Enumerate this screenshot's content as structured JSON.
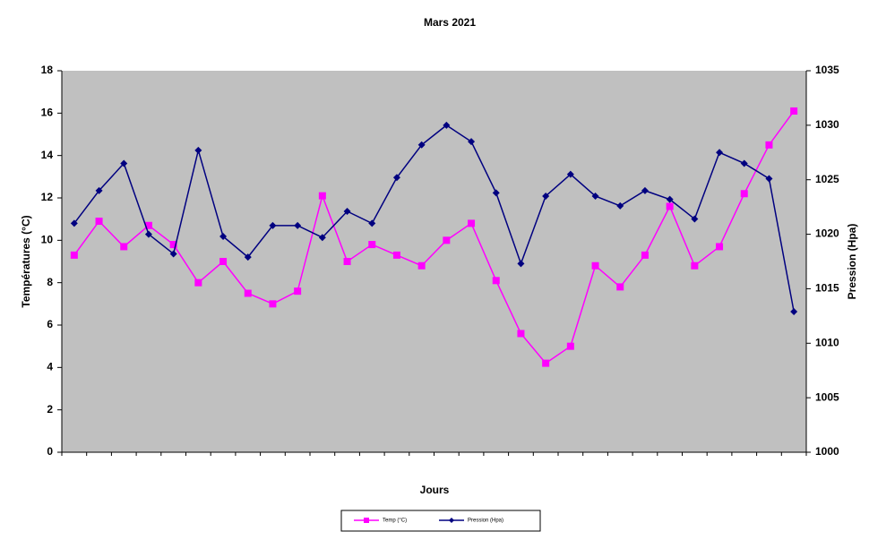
{
  "chart_data": {
    "type": "line",
    "title": "Mars 2021",
    "x_label": "Jours",
    "y_label": "Températures (°C)",
    "y2_label": "Pression (Hpa)",
    "categories": [
      null,
      null,
      null,
      null,
      null,
      null,
      null,
      null,
      null,
      null,
      null,
      null,
      null,
      null,
      null,
      null,
      null,
      null,
      null,
      null,
      null,
      null,
      null,
      null,
      null,
      null,
      null,
      null,
      null,
      null
    ],
    "series": [
      {
        "name": "Temp (°C)",
        "color": "#ff00ff",
        "marker": "square",
        "values": [
          9.3,
          10.9,
          9.7,
          10.7,
          9.8,
          8.0,
          9.0,
          7.5,
          7.0,
          7.6,
          12.1,
          9.0,
          9.8,
          9.3,
          8.8,
          10.0,
          10.8,
          8.1,
          5.6,
          4.2,
          5.0,
          8.8,
          7.8,
          9.3,
          11.6,
          8.8,
          9.7,
          12.2,
          14.5,
          16.1
        ]
      },
      {
        "name": "Pression (Hpa)",
        "color": "#000080",
        "marker": "diamond",
        "axis": "y2",
        "values": [
          1021.0,
          1024.0,
          1026.5,
          1020.0,
          1018.2,
          1027.7,
          1019.8,
          1017.9,
          1020.8,
          1020.8,
          1019.7,
          1022.1,
          1021.0,
          1025.2,
          1028.2,
          1030.0,
          1028.5,
          1023.8,
          1017.3,
          1023.5,
          1025.5,
          1023.5,
          1022.6,
          1024.0,
          1023.2,
          1021.4,
          1027.5,
          1026.5,
          1025.1,
          1012.9
        ]
      }
    ],
    "ylim": [
      0,
      18
    ],
    "yticks": [
      0,
      2,
      4,
      6,
      8,
      10,
      12,
      14,
      16,
      18
    ],
    "y2lim": [
      1000,
      1035
    ],
    "y2ticks": [
      1000,
      1005,
      1010,
      1015,
      1020,
      1025,
      1030,
      1035
    ],
    "plot_background": "#c0c0c0",
    "grid": false,
    "legend": "bottom"
  }
}
